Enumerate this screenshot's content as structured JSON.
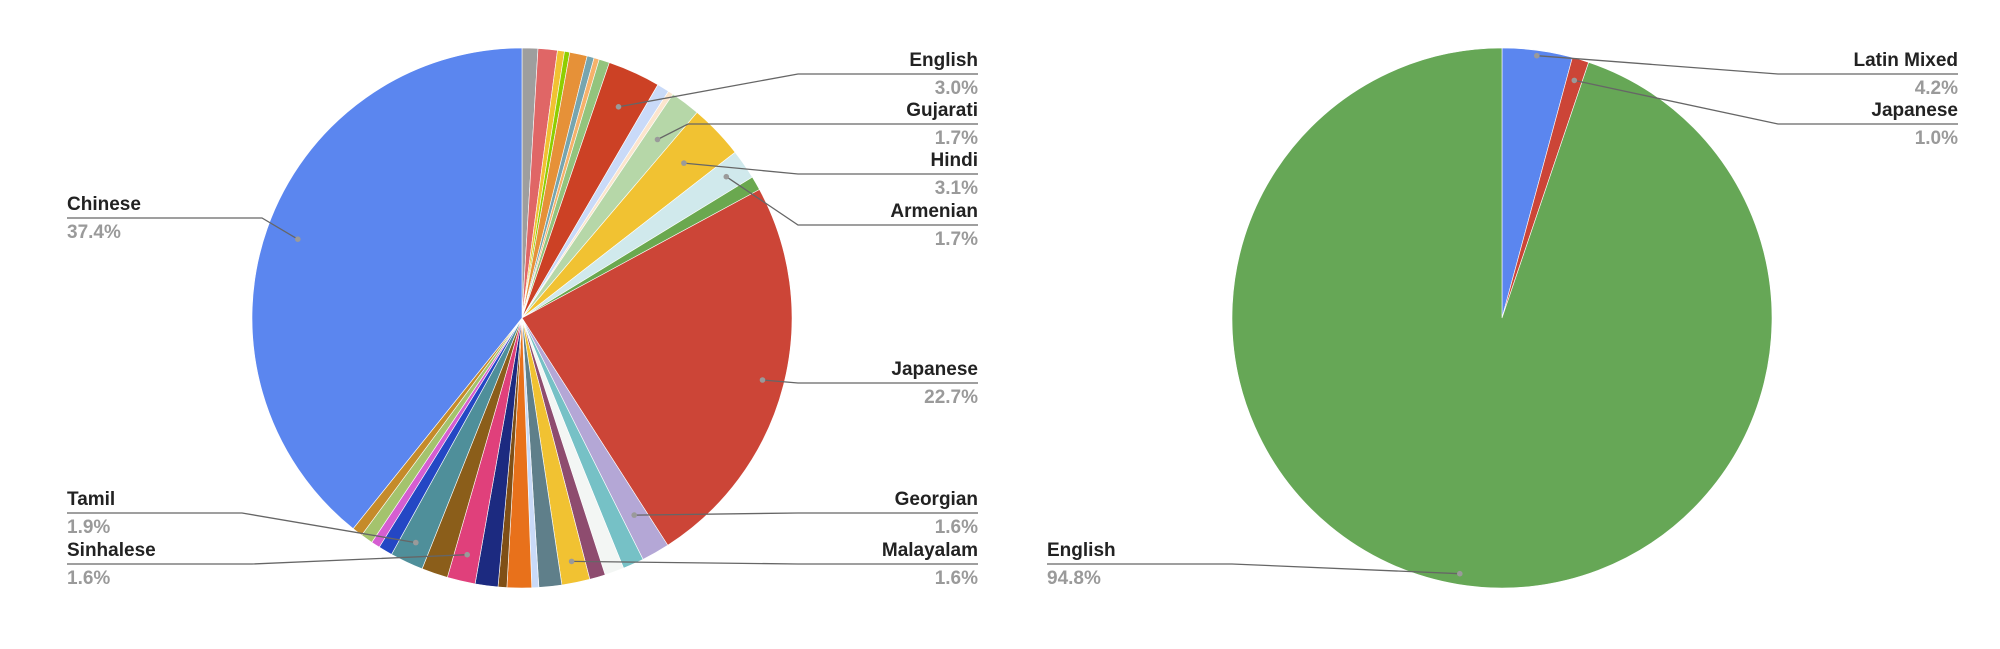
{
  "chart_data": [
    {
      "type": "pie",
      "title": "",
      "slices": [
        {
          "label": "",
          "value": 0.9,
          "color": "#9e9e9e"
        },
        {
          "label": "",
          "value": 1.1,
          "color": "#e06666"
        },
        {
          "label": "",
          "value": 0.4,
          "color": "#f1c232"
        },
        {
          "label": "",
          "value": 0.3,
          "color": "#8fce00"
        },
        {
          "label": "",
          "value": 1.0,
          "color": "#e69138"
        },
        {
          "label": "",
          "value": 0.4,
          "color": "#76a5af"
        },
        {
          "label": "",
          "value": 0.3,
          "color": "#f6b26b"
        },
        {
          "label": "",
          "value": 0.6,
          "color": "#93c47d"
        },
        {
          "label": "English",
          "value": 3.0,
          "color": "#cc4125"
        },
        {
          "label": "",
          "value": 0.7,
          "color": "#c9daf8"
        },
        {
          "label": "",
          "value": 0.3,
          "color": "#fce5cd"
        },
        {
          "label": "Gujarati",
          "value": 1.7,
          "color": "#b6d7a8"
        },
        {
          "label": "Hindi",
          "value": 3.1,
          "color": "#f1c232"
        },
        {
          "label": "Armenian",
          "value": 1.7,
          "color": "#d0e9ec"
        },
        {
          "label": "",
          "value": 0.8,
          "color": "#6aa84f"
        },
        {
          "label": "Japanese",
          "value": 22.7,
          "color": "#cc4537"
        },
        {
          "label": "Georgian",
          "value": 1.6,
          "color": "#b4a7d6"
        },
        {
          "label": "",
          "value": 1.2,
          "color": "#76c1c6"
        },
        {
          "label": "",
          "value": 1.1,
          "color": "#f3f6f4"
        },
        {
          "label": "",
          "value": 0.9,
          "color": "#8e4c6f"
        },
        {
          "label": "Malayalam",
          "value": 1.6,
          "color": "#f1c232"
        },
        {
          "label": "",
          "value": 1.3,
          "color": "#5f7f8a"
        },
        {
          "label": "",
          "value": 0.4,
          "color": "#c9daf8"
        },
        {
          "label": "",
          "value": 1.4,
          "color": "#e8711b"
        },
        {
          "label": "",
          "value": 0.5,
          "color": "#7f4f16"
        },
        {
          "label": "",
          "value": 1.3,
          "color": "#1c2a80"
        },
        {
          "label": "Sinhalese",
          "value": 1.6,
          "color": "#e0407b"
        },
        {
          "label": "",
          "value": 1.5,
          "color": "#8b5e1a"
        },
        {
          "label": "Tamil",
          "value": 1.9,
          "color": "#4f8f9a"
        },
        {
          "label": "",
          "value": 0.8,
          "color": "#2447c4"
        },
        {
          "label": "",
          "value": 0.5,
          "color": "#d55ed1"
        },
        {
          "label": "",
          "value": 0.7,
          "color": "#a4c36d"
        },
        {
          "label": "",
          "value": 0.6,
          "color": "#c58b2a"
        },
        {
          "label": "Chinese",
          "value": 37.4,
          "color": "#5b86ef"
        }
      ],
      "labels": [
        {
          "name": "English",
          "pct": "3.0%"
        },
        {
          "name": "Gujarati",
          "pct": "1.7%"
        },
        {
          "name": "Hindi",
          "pct": "3.1%"
        },
        {
          "name": "Armenian",
          "pct": "1.7%"
        },
        {
          "name": "Japanese",
          "pct": "22.7%"
        },
        {
          "name": "Georgian",
          "pct": "1.6%"
        },
        {
          "name": "Malayalam",
          "pct": "1.6%"
        },
        {
          "name": "Sinhalese",
          "pct": "1.6%"
        },
        {
          "name": "Tamil",
          "pct": "1.9%"
        },
        {
          "name": "Chinese",
          "pct": "37.4%"
        }
      ]
    },
    {
      "type": "pie",
      "title": "",
      "slices": [
        {
          "label": "Latin Mixed",
          "value": 4.2,
          "color": "#5b86ef"
        },
        {
          "label": "Japanese",
          "value": 1.0,
          "color": "#cc4537"
        },
        {
          "label": "English",
          "value": 94.8,
          "color": "#66a756"
        }
      ],
      "labels": [
        {
          "name": "Latin Mixed",
          "pct": "4.2%"
        },
        {
          "name": "Japanese",
          "pct": "1.0%"
        },
        {
          "name": "English",
          "pct": "94.8%"
        }
      ]
    }
  ]
}
